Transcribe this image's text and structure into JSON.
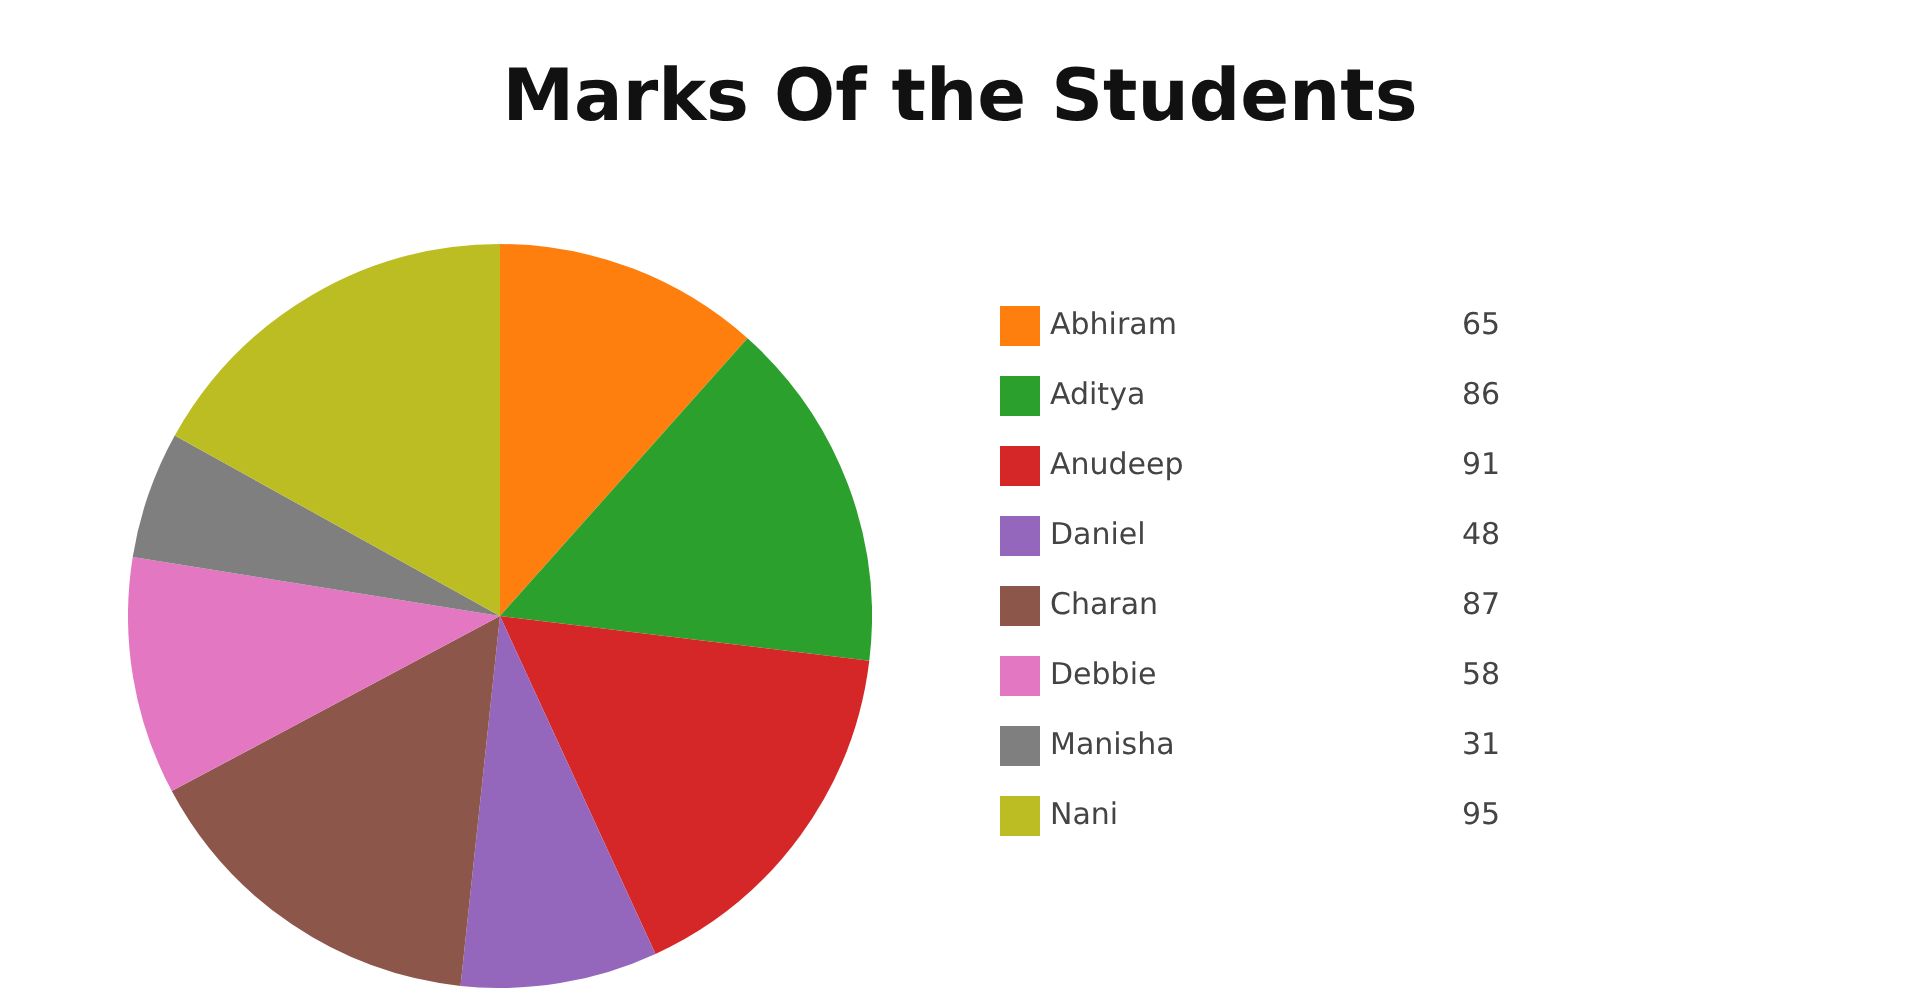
{
  "chart_data": {
    "type": "pie",
    "title": "Marks Of the Students",
    "categories": [
      "Abhiram",
      "Aditya",
      "Anudeep",
      "Daniel",
      "Charan",
      "Debbie",
      "Manisha",
      "Nani"
    ],
    "values": [
      65,
      86,
      91,
      48,
      87,
      58,
      31,
      95
    ],
    "colors": [
      "#ff7f0e",
      "#2ca02c",
      "#d62728",
      "#9467bd",
      "#8c564b",
      "#e377c2",
      "#7f7f7f",
      "#bcbd22"
    ],
    "legend": "right",
    "data_labels": true
  }
}
